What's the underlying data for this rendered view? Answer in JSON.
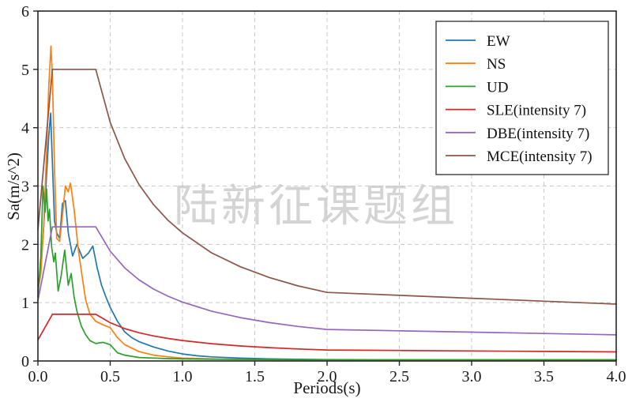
{
  "watermark": {
    "text": "陆新征课题组",
    "color": "#d4d4d4"
  },
  "chart_data": {
    "type": "line",
    "title": "",
    "xlabel": "Periods(s)",
    "ylabel": "Sa(m/s^2)",
    "xlim": [
      0,
      4
    ],
    "ylim": [
      0,
      6
    ],
    "xticks": [
      0,
      0.5,
      1,
      1.5,
      2,
      2.5,
      3,
      3.5,
      4
    ],
    "xtick_labels": [
      "0.0",
      "0.5",
      "1.0",
      "1.5",
      "2.0",
      "2.5",
      "3.0",
      "3.5",
      "4.0"
    ],
    "yticks": [
      0,
      1,
      2,
      3,
      4,
      5,
      6
    ],
    "ytick_labels": [
      "0",
      "1",
      "2",
      "3",
      "4",
      "5",
      "6"
    ],
    "grid": true,
    "legend_position": "upper right",
    "colors": {
      "grid": "#c8c8c8",
      "spine": "#262626",
      "legend_border": "#2b2b2b"
    },
    "series": [
      {
        "name": "EW",
        "color": "#1f77b4",
        "x": [
          0,
          0.02,
          0.04,
          0.06,
          0.075,
          0.088,
          0.1,
          0.115,
          0.13,
          0.15,
          0.17,
          0.19,
          0.21,
          0.24,
          0.27,
          0.31,
          0.35,
          0.38,
          0.41,
          0.44,
          0.47,
          0.5,
          0.55,
          0.6,
          0.65,
          0.7,
          0.8,
          0.9,
          1.0,
          1.1,
          1.2,
          1.4,
          1.6,
          1.8,
          2.0,
          2.5,
          3.0,
          3.5,
          4.0
        ],
        "y": [
          1.3,
          1.6,
          2.3,
          3.2,
          3.85,
          4.25,
          3.4,
          2.4,
          2.2,
          2.1,
          2.7,
          2.75,
          2.2,
          1.8,
          2.0,
          1.76,
          1.85,
          1.97,
          1.6,
          1.3,
          1.1,
          0.92,
          0.68,
          0.5,
          0.4,
          0.33,
          0.24,
          0.17,
          0.12,
          0.09,
          0.07,
          0.05,
          0.035,
          0.03,
          0.025,
          0.02,
          0.02,
          0.02,
          0.02
        ]
      },
      {
        "name": "NS",
        "color": "#ff7f0e",
        "x": [
          0,
          0.02,
          0.04,
          0.06,
          0.075,
          0.09,
          0.1,
          0.115,
          0.13,
          0.15,
          0.17,
          0.19,
          0.21,
          0.225,
          0.25,
          0.28,
          0.3,
          0.33,
          0.36,
          0.4,
          0.45,
          0.5,
          0.55,
          0.6,
          0.7,
          0.8,
          0.9,
          1.0,
          1.2,
          1.5,
          2.0,
          2.5,
          3.0,
          3.5,
          4.0
        ],
        "y": [
          1.2,
          1.5,
          2.3,
          3.6,
          4.7,
          5.4,
          4.9,
          3.3,
          2.1,
          2.05,
          2.5,
          3.0,
          2.9,
          3.05,
          2.6,
          1.9,
          1.55,
          1.05,
          0.8,
          0.68,
          0.62,
          0.57,
          0.4,
          0.28,
          0.16,
          0.1,
          0.07,
          0.05,
          0.035,
          0.025,
          0.02,
          0.02,
          0.02,
          0.02,
          0.02
        ]
      },
      {
        "name": "UD",
        "color": "#2ca02c",
        "x": [
          0,
          0.02,
          0.035,
          0.05,
          0.06,
          0.07,
          0.08,
          0.095,
          0.11,
          0.12,
          0.14,
          0.16,
          0.185,
          0.21,
          0.23,
          0.25,
          0.27,
          0.3,
          0.33,
          0.36,
          0.4,
          0.45,
          0.5,
          0.55,
          0.6,
          0.7,
          0.8,
          0.9,
          1.0,
          1.2,
          1.5,
          2.0,
          2.5,
          3.0,
          3.5,
          4.0
        ],
        "y": [
          1.1,
          1.8,
          3.0,
          2.55,
          2.95,
          2.4,
          2.6,
          1.95,
          1.7,
          1.85,
          1.2,
          1.45,
          1.9,
          1.3,
          1.5,
          1.1,
          0.85,
          0.6,
          0.45,
          0.35,
          0.3,
          0.32,
          0.28,
          0.14,
          0.1,
          0.06,
          0.05,
          0.04,
          0.035,
          0.03,
          0.025,
          0.02,
          0.02,
          0.02,
          0.02,
          0.02
        ]
      },
      {
        "name": "SLE(intensity 7)",
        "color": "#d62728",
        "x": [
          0,
          0.1,
          0.4,
          0.5,
          0.6,
          0.7,
          0.8,
          0.9,
          1.0,
          1.2,
          1.4,
          1.6,
          1.8,
          2.0,
          2.5,
          3.0,
          3.5,
          4.0
        ],
        "y": [
          0.36,
          0.8,
          0.8,
          0.655,
          0.555,
          0.483,
          0.429,
          0.386,
          0.351,
          0.297,
          0.258,
          0.229,
          0.206,
          0.188,
          0.18,
          0.172,
          0.164,
          0.156
        ]
      },
      {
        "name": "DBE(intensity 7)",
        "color": "#9467bd",
        "x": [
          0,
          0.1,
          0.4,
          0.5,
          0.6,
          0.7,
          0.8,
          0.9,
          1.0,
          1.2,
          1.4,
          1.6,
          1.8,
          2.0,
          2.5,
          3.0,
          3.5,
          4.0
        ],
        "y": [
          1.035,
          2.3,
          2.3,
          1.882,
          1.597,
          1.39,
          1.233,
          1.11,
          1.011,
          0.854,
          0.743,
          0.658,
          0.592,
          0.54,
          0.517,
          0.494,
          0.471,
          0.448
        ]
      },
      {
        "name": "MCE(intensity 7)",
        "color": "#8c564b",
        "x": [
          0,
          0.1,
          0.4,
          0.5,
          0.6,
          0.7,
          0.8,
          0.9,
          1.0,
          1.2,
          1.4,
          1.6,
          1.8,
          2.0,
          2.5,
          3.0,
          3.5,
          4.0
        ],
        "y": [
          2.25,
          5.0,
          5.0,
          4.091,
          3.472,
          3.022,
          2.68,
          2.412,
          2.197,
          1.856,
          1.616,
          1.431,
          1.287,
          1.175,
          1.125,
          1.075,
          1.025,
          0.975
        ]
      }
    ]
  }
}
